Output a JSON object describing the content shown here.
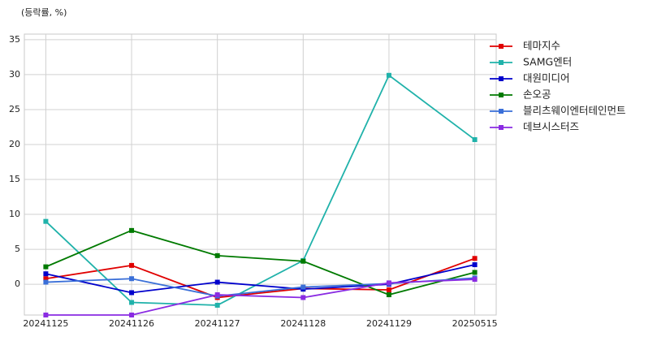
{
  "chart_data": {
    "type": "line",
    "y_label": "(등락률, %)",
    "categories": [
      "20241125",
      "20241126",
      "20241127",
      "20241128",
      "20241129",
      "20250515"
    ],
    "series": [
      {
        "name": "테마지수",
        "color": "#e00000",
        "values": [
          0.8,
          2.7,
          -1.9,
          -0.6,
          -0.8,
          3.7
        ]
      },
      {
        "name": "SAMG엔터",
        "color": "#20b2aa",
        "values": [
          9.0,
          -2.6,
          -3.0,
          3.4,
          29.9,
          20.7
        ]
      },
      {
        "name": "대원미디어",
        "color": "#0000cc",
        "values": [
          1.5,
          -1.2,
          0.3,
          -0.7,
          0,
          2.8
        ]
      },
      {
        "name": "손오공",
        "color": "#007a00",
        "values": [
          2.5,
          7.7,
          4.1,
          3.3,
          -1.5,
          1.7
        ]
      },
      {
        "name": "블리츠웨이엔터테인먼트",
        "color": "#3a6fd8",
        "values": [
          0.3,
          0.8,
          -1.7,
          -0.4,
          0.1,
          0.9
        ]
      },
      {
        "name": "데브시스터즈",
        "color": "#8a2be2",
        "values": [
          -4.4,
          -4.4,
          -1.5,
          -1.9,
          0.2,
          0.7
        ]
      }
    ],
    "ylim": [
      -4.4,
      35.8
    ],
    "yticks": [
      0,
      5,
      10,
      15,
      20,
      25,
      30,
      35
    ],
    "grid": true,
    "legend": "right"
  }
}
